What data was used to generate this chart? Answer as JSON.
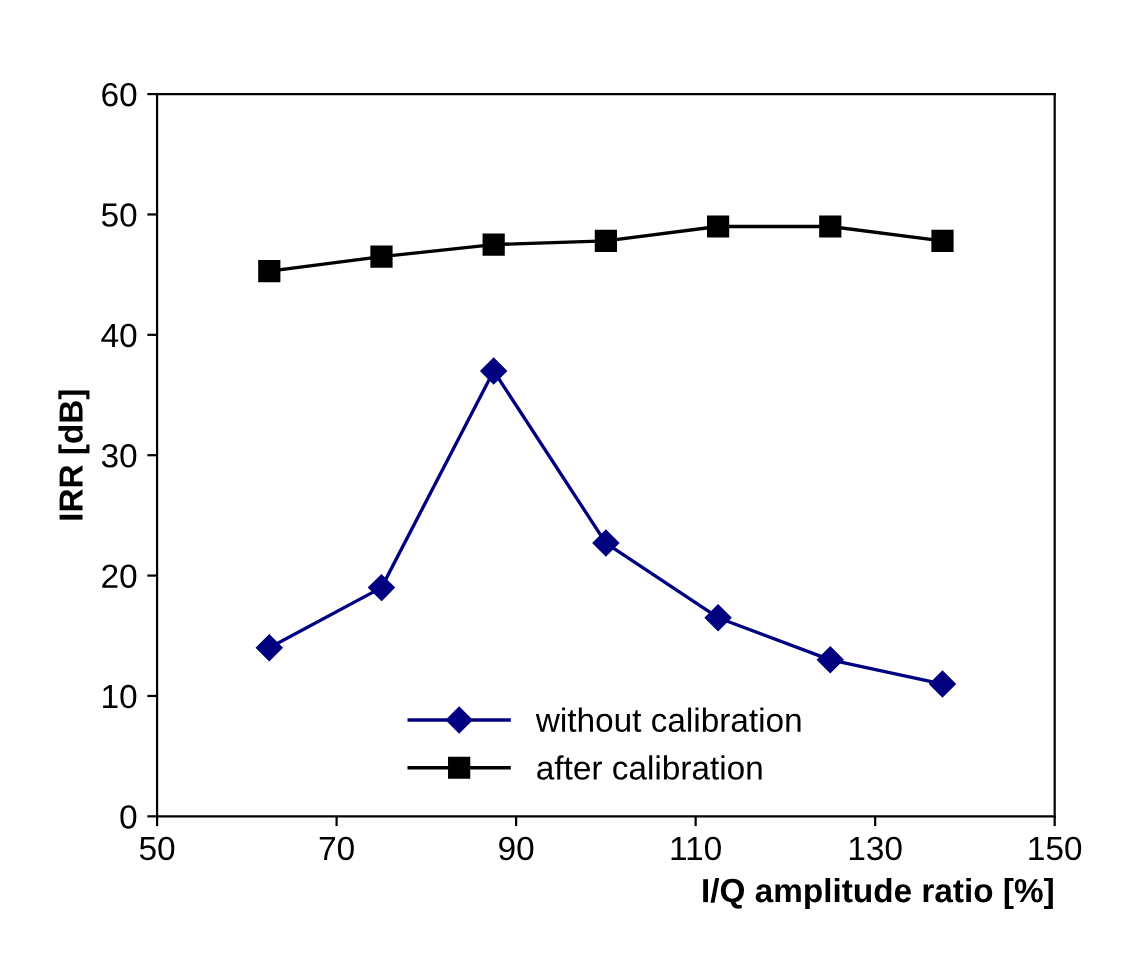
{
  "chart_data": {
    "type": "line",
    "xlabel": "I/Q amplitude ratio [%]",
    "ylabel": "IRR [dB]",
    "x": [
      62.5,
      75,
      87.5,
      100,
      112.5,
      125,
      137.5
    ],
    "series": [
      {
        "name": "without calibration",
        "color": "#000080",
        "values": [
          14,
          19,
          37,
          22.7,
          16.5,
          13,
          11
        ],
        "marker": "diamond"
      },
      {
        "name": "after calibration",
        "color": "#000000",
        "values": [
          45.3,
          46.5,
          47.5,
          47.8,
          49,
          49,
          47.8
        ],
        "marker": "square"
      }
    ],
    "xlim": [
      50,
      150
    ],
    "xticks": [
      50,
      70,
      90,
      110,
      130,
      150
    ],
    "ylim": [
      0,
      60
    ],
    "yticks": [
      0,
      10,
      20,
      30,
      40,
      50,
      60
    ],
    "grid": false,
    "legend": "bottom",
    "line_style": "solid"
  }
}
